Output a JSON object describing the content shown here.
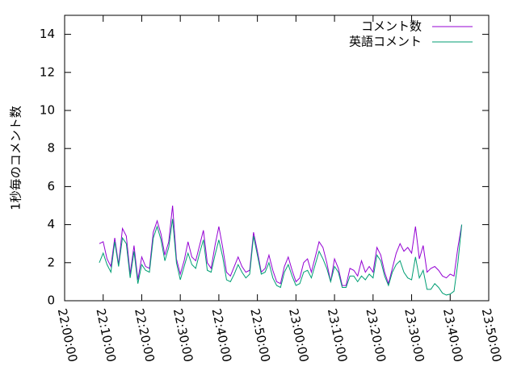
{
  "chart_data": {
    "type": "line",
    "ylabel": "1秒毎のコメント数",
    "x": [
      "22:09:00",
      "22:10:00",
      "22:11:00",
      "22:12:00",
      "22:13:00",
      "22:14:00",
      "22:15:00",
      "22:16:00",
      "22:17:00",
      "22:18:00",
      "22:19:00",
      "22:20:00",
      "22:21:00",
      "22:22:00",
      "22:23:00",
      "22:24:00",
      "22:25:00",
      "22:26:00",
      "22:27:00",
      "22:28:00",
      "22:29:00",
      "22:30:00",
      "22:31:00",
      "22:32:00",
      "22:33:00",
      "22:34:00",
      "22:35:00",
      "22:36:00",
      "22:37:00",
      "22:38:00",
      "22:39:00",
      "22:40:00",
      "22:41:00",
      "22:42:00",
      "22:43:00",
      "22:44:00",
      "22:45:00",
      "22:46:00",
      "22:47:00",
      "22:48:00",
      "22:49:00",
      "22:50:00",
      "22:51:00",
      "22:52:00",
      "22:53:00",
      "22:54:00",
      "22:55:00",
      "22:56:00",
      "22:57:00",
      "22:58:00",
      "22:59:00",
      "23:00:00",
      "23:01:00",
      "23:02:00",
      "23:03:00",
      "23:04:00",
      "23:05:00",
      "23:06:00",
      "23:07:00",
      "23:08:00",
      "23:09:00",
      "23:10:00",
      "23:11:00",
      "23:12:00",
      "23:13:00",
      "23:14:00",
      "23:15:00",
      "23:16:00",
      "23:17:00",
      "23:18:00",
      "23:19:00",
      "23:20:00",
      "23:21:00",
      "23:22:00",
      "23:23:00",
      "23:24:00",
      "23:25:00",
      "23:26:00",
      "23:27:00",
      "23:28:00",
      "23:29:00",
      "23:30:00",
      "23:31:00",
      "23:32:00",
      "23:33:00",
      "23:34:00",
      "23:35:00",
      "23:36:00",
      "23:37:00",
      "23:38:00",
      "23:39:00",
      "23:40:00",
      "23:41:00",
      "23:42:00",
      "23:43:00"
    ],
    "series": [
      {
        "name": "コメント数",
        "color": "#9400d3",
        "values": [
          3.0,
          3.1,
          2.2,
          1.8,
          3.3,
          1.9,
          3.8,
          3.4,
          1.4,
          2.9,
          1.1,
          2.3,
          1.8,
          1.7,
          3.6,
          4.2,
          3.5,
          2.4,
          3.1,
          5.0,
          2.2,
          1.4,
          2.1,
          3.1,
          2.3,
          2.1,
          2.9,
          3.7,
          2.0,
          1.7,
          2.9,
          3.9,
          2.8,
          1.5,
          1.3,
          1.8,
          2.3,
          1.8,
          1.5,
          1.6,
          3.6,
          2.6,
          1.5,
          1.7,
          2.4,
          1.6,
          1.0,
          0.9,
          1.8,
          2.3,
          1.6,
          1.0,
          1.2,
          2.0,
          2.2,
          1.5,
          2.3,
          3.1,
          2.8,
          2.0,
          1.0,
          2.2,
          1.7,
          0.8,
          0.8,
          1.7,
          1.6,
          1.3,
          2.1,
          1.5,
          1.8,
          1.5,
          2.8,
          2.4,
          1.5,
          0.9,
          1.7,
          2.5,
          3.0,
          2.6,
          2.8,
          2.5,
          3.9,
          2.2,
          2.9,
          1.5,
          1.7,
          1.8,
          1.6,
          1.3,
          1.2,
          1.4,
          1.3,
          2.8,
          4.0
        ]
      },
      {
        "name": "英語コメント",
        "color": "#009e73",
        "values": [
          2.0,
          2.5,
          1.9,
          1.5,
          3.1,
          1.8,
          3.3,
          3.0,
          1.2,
          2.6,
          0.9,
          1.9,
          1.6,
          1.5,
          3.3,
          3.9,
          3.2,
          2.1,
          2.8,
          4.3,
          2.0,
          1.1,
          1.8,
          2.5,
          1.9,
          1.7,
          2.5,
          3.2,
          1.6,
          1.5,
          2.4,
          3.2,
          2.3,
          1.1,
          1.0,
          1.4,
          1.9,
          1.5,
          1.2,
          1.4,
          3.4,
          2.4,
          1.4,
          1.5,
          2.0,
          1.2,
          0.8,
          0.7,
          1.5,
          1.9,
          1.3,
          0.8,
          0.9,
          1.5,
          1.6,
          1.2,
          1.9,
          2.6,
          2.2,
          1.7,
          1.0,
          1.8,
          1.5,
          0.7,
          0.7,
          1.3,
          1.3,
          1.0,
          1.3,
          1.1,
          1.4,
          1.2,
          2.4,
          2.1,
          1.3,
          0.8,
          1.5,
          1.9,
          2.1,
          1.5,
          1.2,
          1.1,
          2.3,
          1.2,
          1.6,
          0.6,
          0.6,
          0.9,
          0.7,
          0.4,
          0.3,
          0.35,
          0.5,
          2.0,
          4.0
        ]
      }
    ],
    "xlim": [
      "22:00:00",
      "23:50:00"
    ],
    "xticks": [
      "22:00:00",
      "22:10:00",
      "22:20:00",
      "22:30:00",
      "22:40:00",
      "22:50:00",
      "23:00:00",
      "23:10:00",
      "23:20:00",
      "23:30:00",
      "23:40:00",
      "23:50:00"
    ],
    "ylim": [
      0,
      15
    ],
    "yticks": [
      0,
      2,
      4,
      6,
      8,
      10,
      12,
      14
    ],
    "grid": false,
    "legend": "upper right"
  }
}
